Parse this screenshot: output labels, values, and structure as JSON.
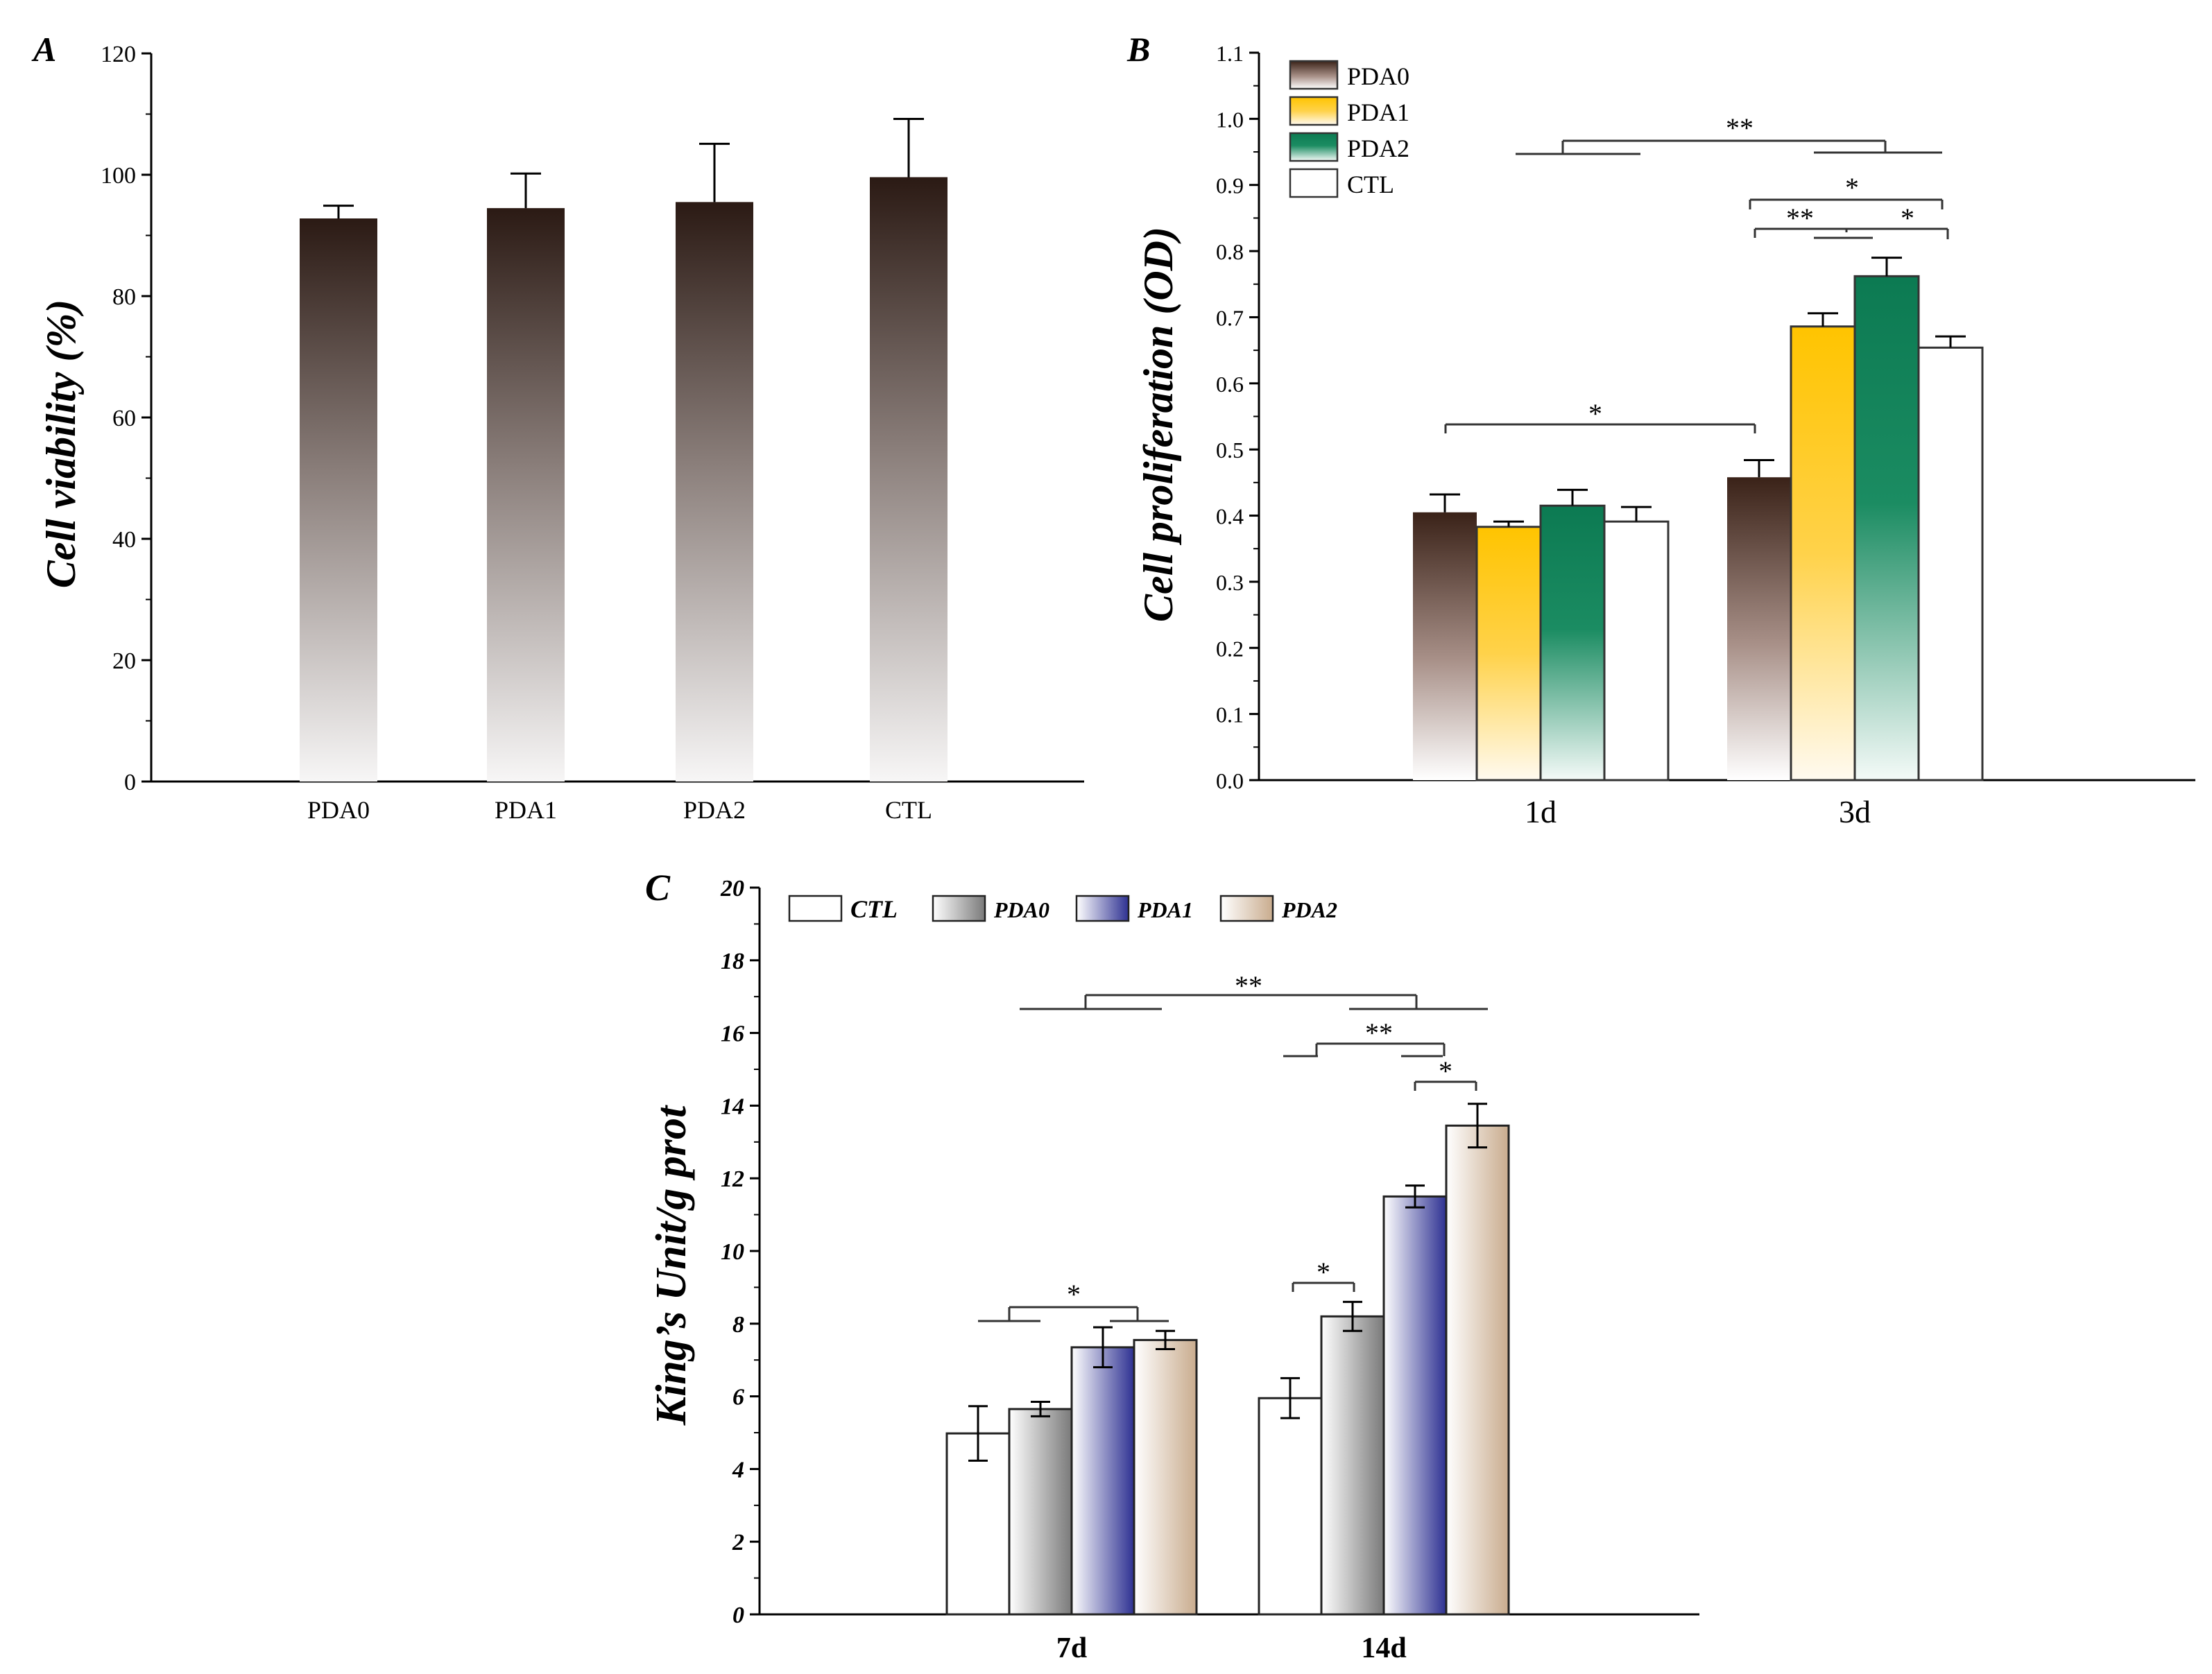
{
  "colors": {
    "pda0_dark": "#3a2218",
    "pda1_yellow": "#ffc400",
    "pda2_green": "#0c7a52",
    "ctl_white": "#ffffff",
    "c_gray": "#8e8e8e",
    "c_blue": "#2e3192",
    "c_tan": "#c9ac8e",
    "axis": "#000000"
  },
  "chart_data": [
    {
      "id": "A",
      "panel_label": "A",
      "type": "bar",
      "ylabel": "Cell viability (%)",
      "xlabel": "",
      "ylim": [
        0,
        120
      ],
      "yticks": [
        "0",
        "20",
        "40",
        "60",
        "80",
        "100",
        "120"
      ],
      "categories": [
        "PDA0",
        "PDA1",
        "PDA2",
        "CTL"
      ],
      "values": [
        92.8,
        94.5,
        95.5,
        99.6
      ],
      "errors": [
        2.1,
        5.7,
        9.6,
        9.6
      ],
      "legend": "none"
    },
    {
      "id": "B",
      "panel_label": "B",
      "type": "bar",
      "ylabel": "Cell proliferation (OD)",
      "xlabel": "",
      "ylim": [
        0,
        1.1
      ],
      "yticks": [
        "0.0",
        "0.1",
        "0.2",
        "0.3",
        "0.4",
        "0.5",
        "0.6",
        "0.7",
        "0.8",
        "0.9",
        "1.0",
        "1.1"
      ],
      "categories": [
        "1d",
        "3d"
      ],
      "series": [
        {
          "name": "PDA0",
          "values": [
            0.405,
            0.458
          ],
          "errors": [
            0.027,
            0.026
          ]
        },
        {
          "name": "PDA1",
          "values": [
            0.383,
            0.686
          ],
          "errors": [
            0.008,
            0.02
          ]
        },
        {
          "name": "PDA2",
          "values": [
            0.415,
            0.762
          ],
          "errors": [
            0.024,
            0.028
          ]
        },
        {
          "name": "CTL",
          "values": [
            0.391,
            0.654
          ],
          "errors": [
            0.022,
            0.017
          ]
        }
      ],
      "legend": "top-left",
      "annotations": [
        {
          "label": "**",
          "between": "1d group vs 3d group"
        },
        {
          "label": "*",
          "between": "PDA0 3d vs CTL 3d"
        },
        {
          "label": "**",
          "between": "PDA0 3d vs PDA1/PDA2 3d"
        },
        {
          "label": "*",
          "between": "PDA1/PDA2 3d vs CTL 3d"
        },
        {
          "label": "*",
          "between": "PDA0 1d vs PDA0 3d"
        }
      ]
    },
    {
      "id": "C",
      "panel_label": "C",
      "type": "bar",
      "ylabel": "King’s Unit/g prot",
      "xlabel": "",
      "ylim": [
        0,
        20
      ],
      "yticks": [
        "0",
        "2",
        "4",
        "6",
        "8",
        "10",
        "12",
        "14",
        "16",
        "18",
        "20"
      ],
      "categories": [
        "7d",
        "14d"
      ],
      "series": [
        {
          "name": "CTL",
          "values": [
            4.98,
            5.95
          ],
          "errors": [
            0.75,
            0.55
          ]
        },
        {
          "name": "PDA0",
          "values": [
            5.65,
            8.2
          ],
          "errors": [
            0.2,
            0.4
          ]
        },
        {
          "name": "PDA1",
          "values": [
            7.35,
            11.5
          ],
          "errors": [
            0.55,
            0.3
          ]
        },
        {
          "name": "PDA2",
          "values": [
            7.55,
            13.45
          ],
          "errors": [
            0.25,
            0.6
          ]
        }
      ],
      "legend": "top",
      "annotations": [
        {
          "label": "**",
          "between": "7d group vs 14d group"
        },
        {
          "label": "**",
          "between": "14d CTL/PDA0 vs PDA1/PDA2"
        },
        {
          "label": "*",
          "between": "PDA1 14d vs PDA2 14d"
        },
        {
          "label": "*",
          "between": "CTL 14d vs PDA0 14d"
        },
        {
          "label": "*",
          "between": "7d CTL/PDA0 vs PDA1/PDA2"
        }
      ]
    }
  ]
}
